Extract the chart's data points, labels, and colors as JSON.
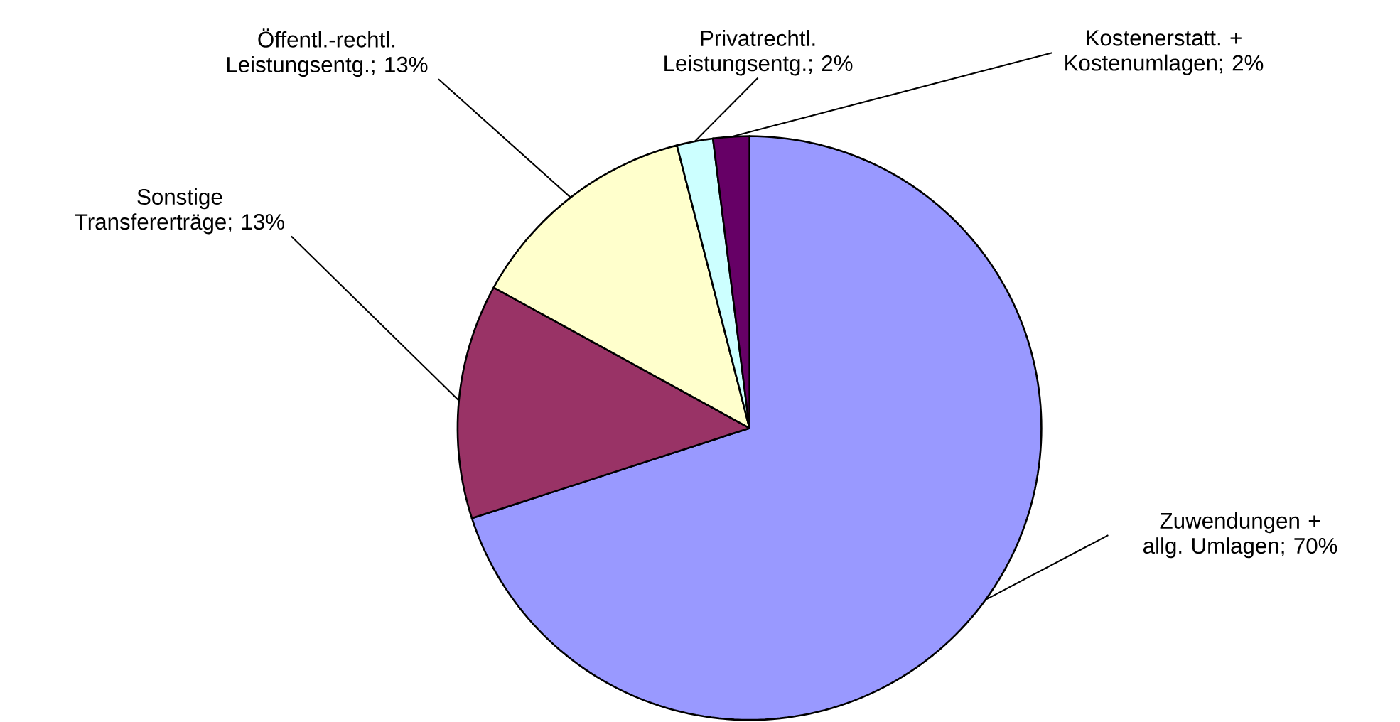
{
  "chart_data": {
    "type": "pie",
    "categories": [
      "Zuwendungen + allg. Umlagen",
      "Sonstige Transfererträge",
      "Öffentl.-rechtl. Leistungsentg.",
      "Privatrechtl. Leistungsentg.",
      "Kostenerstatt. + Kostenumlagen"
    ],
    "values": [
      70,
      13,
      13,
      2,
      2
    ],
    "value_labels": [
      "; 70%",
      "; 13%",
      "; 13%",
      "; 2%",
      "; 2%"
    ],
    "colors": [
      "#9999ff",
      "#993366",
      "#ffffcc",
      "#ccffff",
      "#660066"
    ]
  }
}
